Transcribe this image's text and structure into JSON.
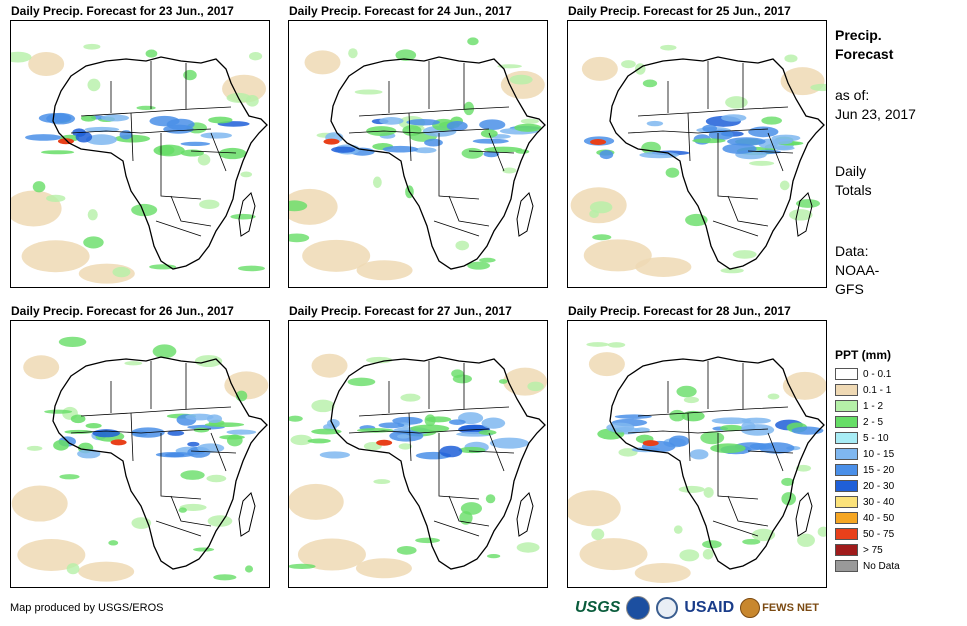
{
  "panels": [
    {
      "title": "Daily Precip. Forecast for 23 Jun., 2017"
    },
    {
      "title": "Daily Precip. Forecast for 24 Jun., 2017"
    },
    {
      "title": "Daily Precip. Forecast for 25 Jun., 2017"
    },
    {
      "title": "Daily Precip. Forecast for 26 Jun., 2017"
    },
    {
      "title": "Daily Precip. Forecast for 27 Jun., 2017"
    },
    {
      "title": "Daily Precip. Forecast for 28 Jun., 2017"
    }
  ],
  "sidebar": {
    "title_line1": "Precip.",
    "title_line2": "Forecast",
    "asof_label": "as of:",
    "asof_date": "Jun 23, 2017",
    "totals_line1": "Daily",
    "totals_line2": "Totals",
    "data_label": "Data:",
    "data_source_line1": "NOAA-",
    "data_source_line2": "GFS"
  },
  "legend": {
    "title": "PPT (mm)",
    "items": [
      {
        "label": "0 - 0.1",
        "color": "#ffffff"
      },
      {
        "label": "0.1 - 1",
        "color": "#efd9b4"
      },
      {
        "label": "1 - 2",
        "color": "#b5f0a8"
      },
      {
        "label": "2 - 5",
        "color": "#66dd66"
      },
      {
        "label": "5 - 10",
        "color": "#a8ecf5"
      },
      {
        "label": "10 - 15",
        "color": "#7fb7f0"
      },
      {
        "label": "15 - 20",
        "color": "#4a8fe8"
      },
      {
        "label": "20 - 30",
        "color": "#1f5fd8"
      },
      {
        "label": "30 - 40",
        "color": "#fbe27a"
      },
      {
        "label": "40 - 50",
        "color": "#f5a623"
      },
      {
        "label": "50 - 75",
        "color": "#e8401a"
      },
      {
        "label": "> 75",
        "color": "#a01b1b"
      },
      {
        "label": "No Data",
        "color": "#999999"
      }
    ]
  },
  "footer": {
    "credit": "Map produced by USGS/EROS",
    "logo_usgs": "USGS",
    "logo_usaid": "USAID",
    "logo_fews": "FEWS NET"
  }
}
